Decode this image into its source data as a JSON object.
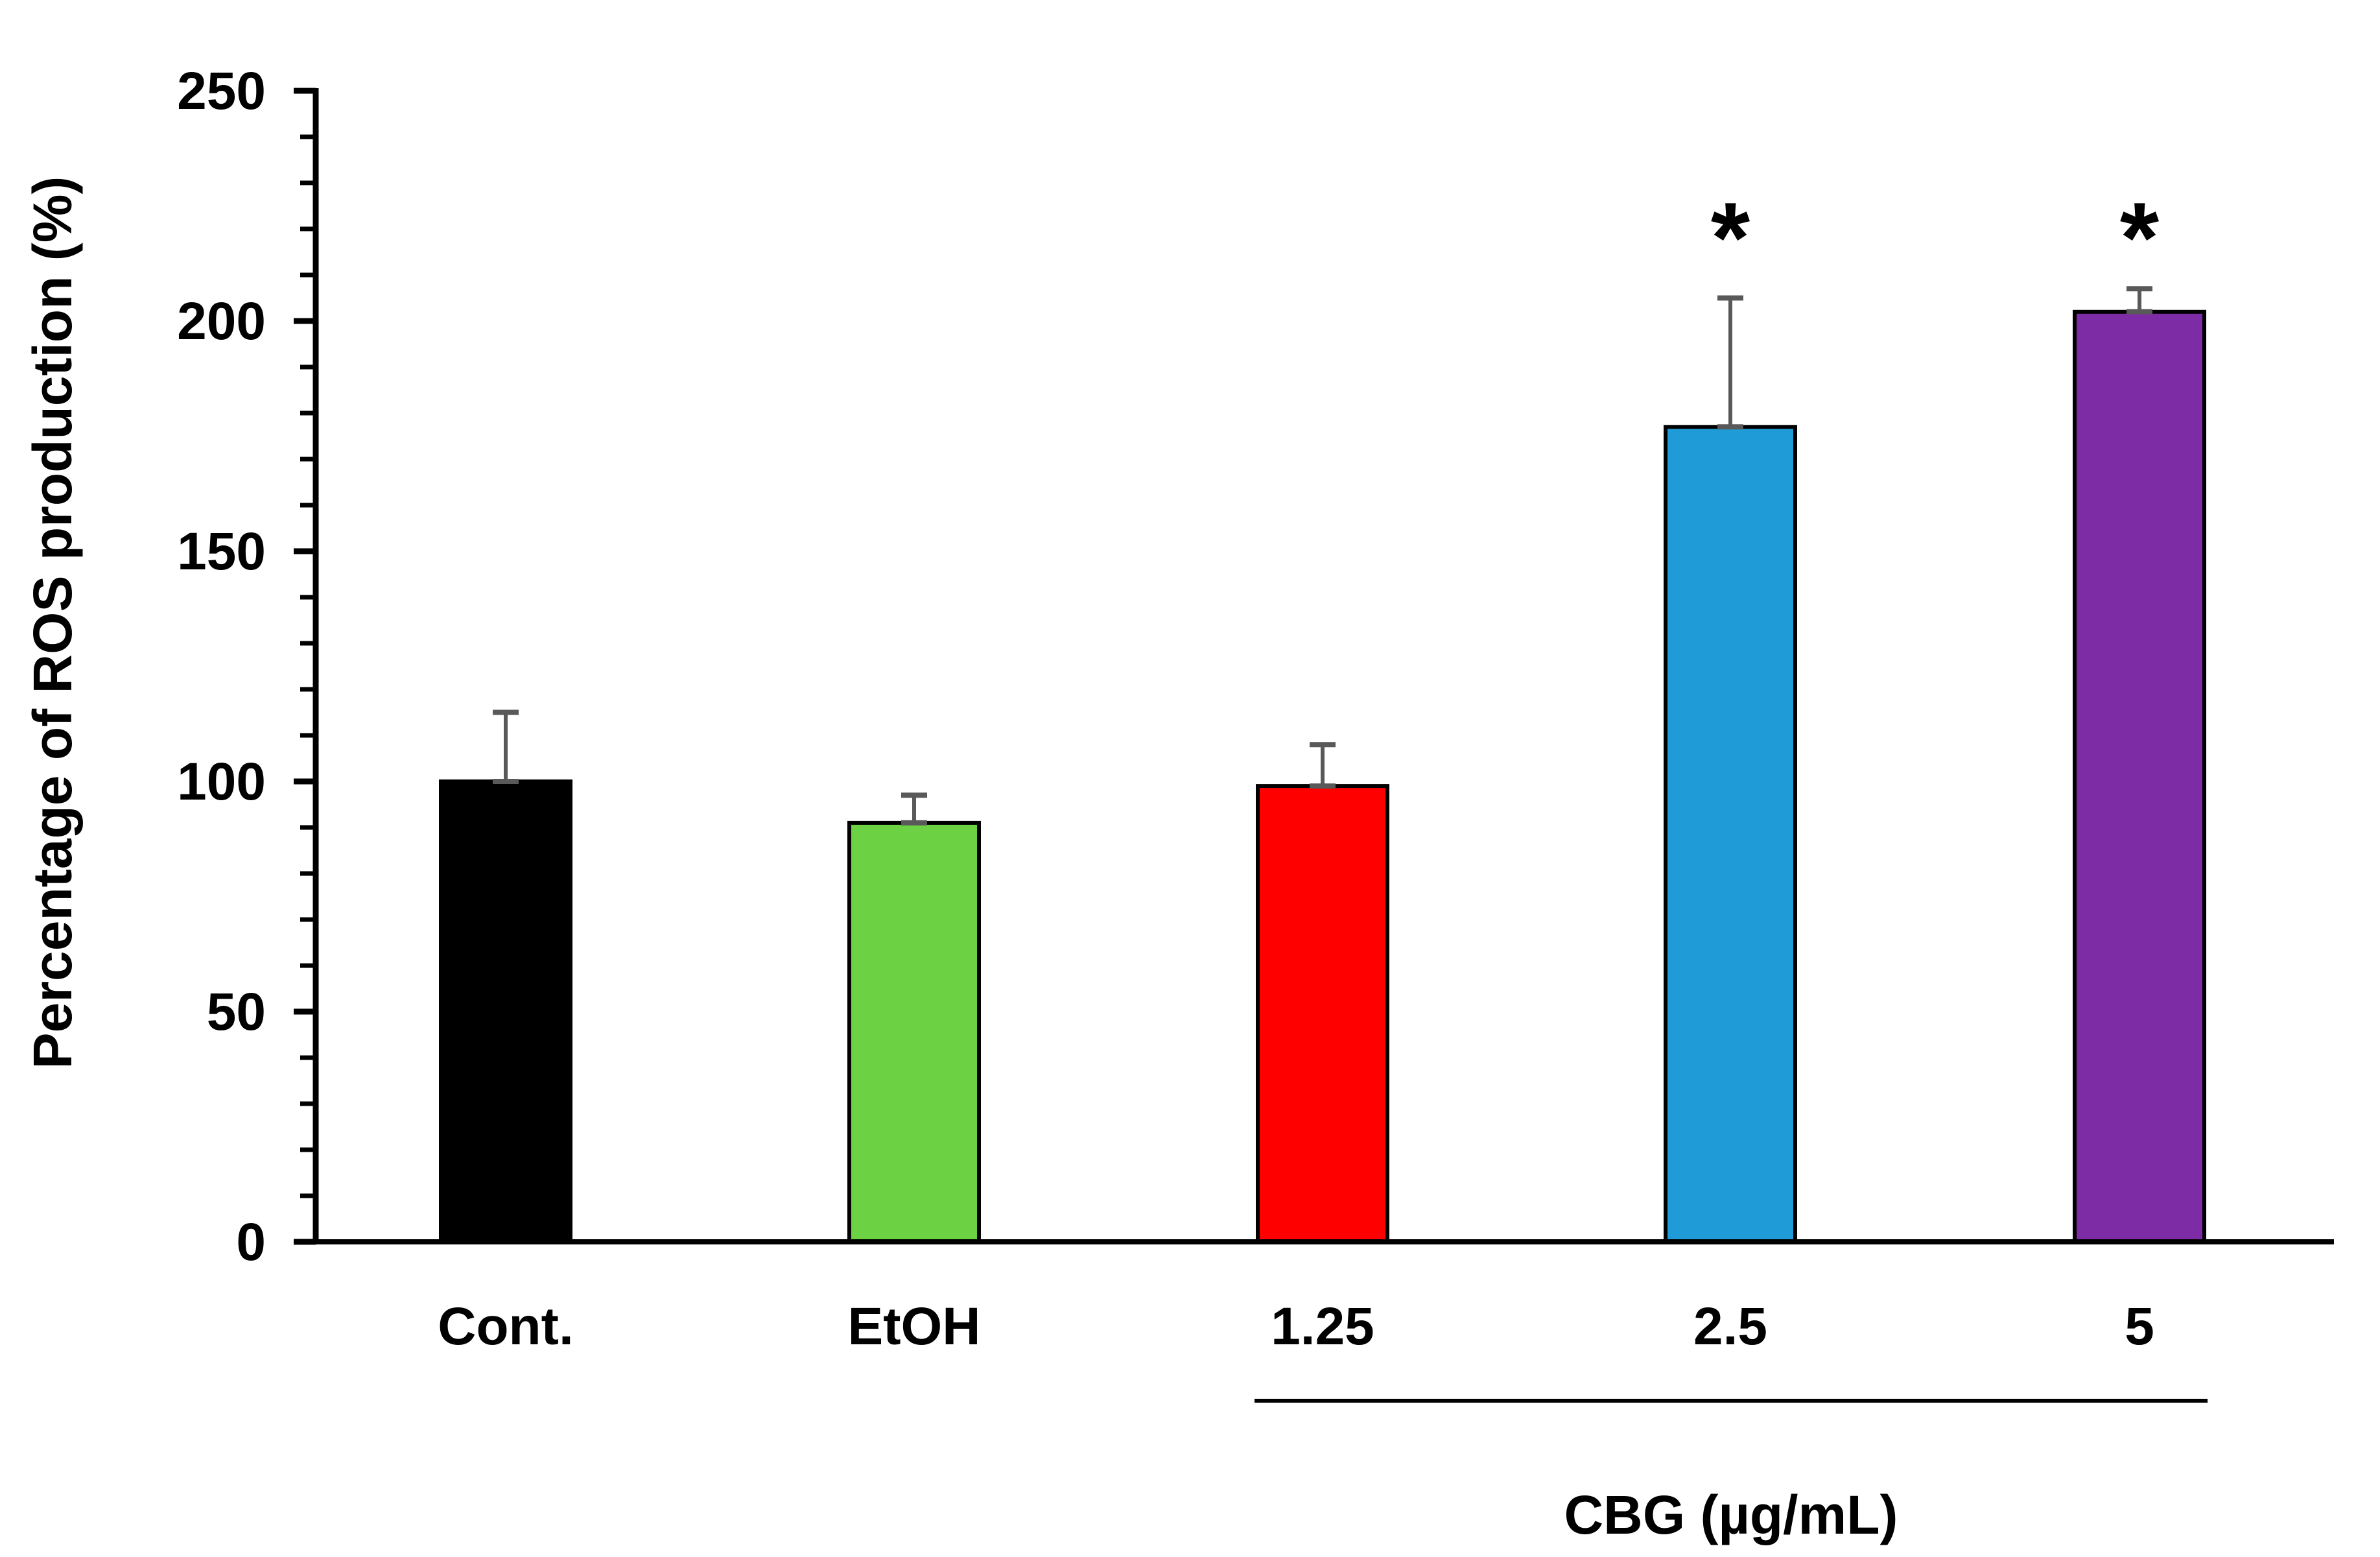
{
  "figure": {
    "y_axis_title": "Percentage of ROS production (%)",
    "group_axis_label": "CBG (µg/mL)"
  },
  "chart_data": {
    "type": "bar",
    "title": "",
    "xlabel": "",
    "ylabel": "Percentage of ROS production (%)",
    "group_label": "CBG (µg/mL)",
    "group_members": [
      "1.25",
      "2.5",
      "5"
    ],
    "categories": [
      "Cont.",
      "EtOH",
      "1.25",
      "2.5",
      "5"
    ],
    "values": [
      100,
      91,
      99,
      177,
      202
    ],
    "error_plus": [
      15,
      6,
      9,
      28,
      5
    ],
    "error_tops": [
      115,
      97,
      108,
      205,
      207
    ],
    "significance": [
      "",
      "",
      "",
      "*",
      "*"
    ],
    "bar_colors": [
      "#000000",
      "#6CD143",
      "#FF0000",
      "#1F9CD8",
      "#7D2CA5"
    ],
    "bar_border_color": "#000000",
    "error_bar_color": "#595959",
    "ylim": [
      0,
      250
    ],
    "y_major_ticks": [
      0,
      50,
      100,
      150,
      200,
      250
    ],
    "y_minor_tick_step": 10,
    "grid": false,
    "legend": false
  }
}
